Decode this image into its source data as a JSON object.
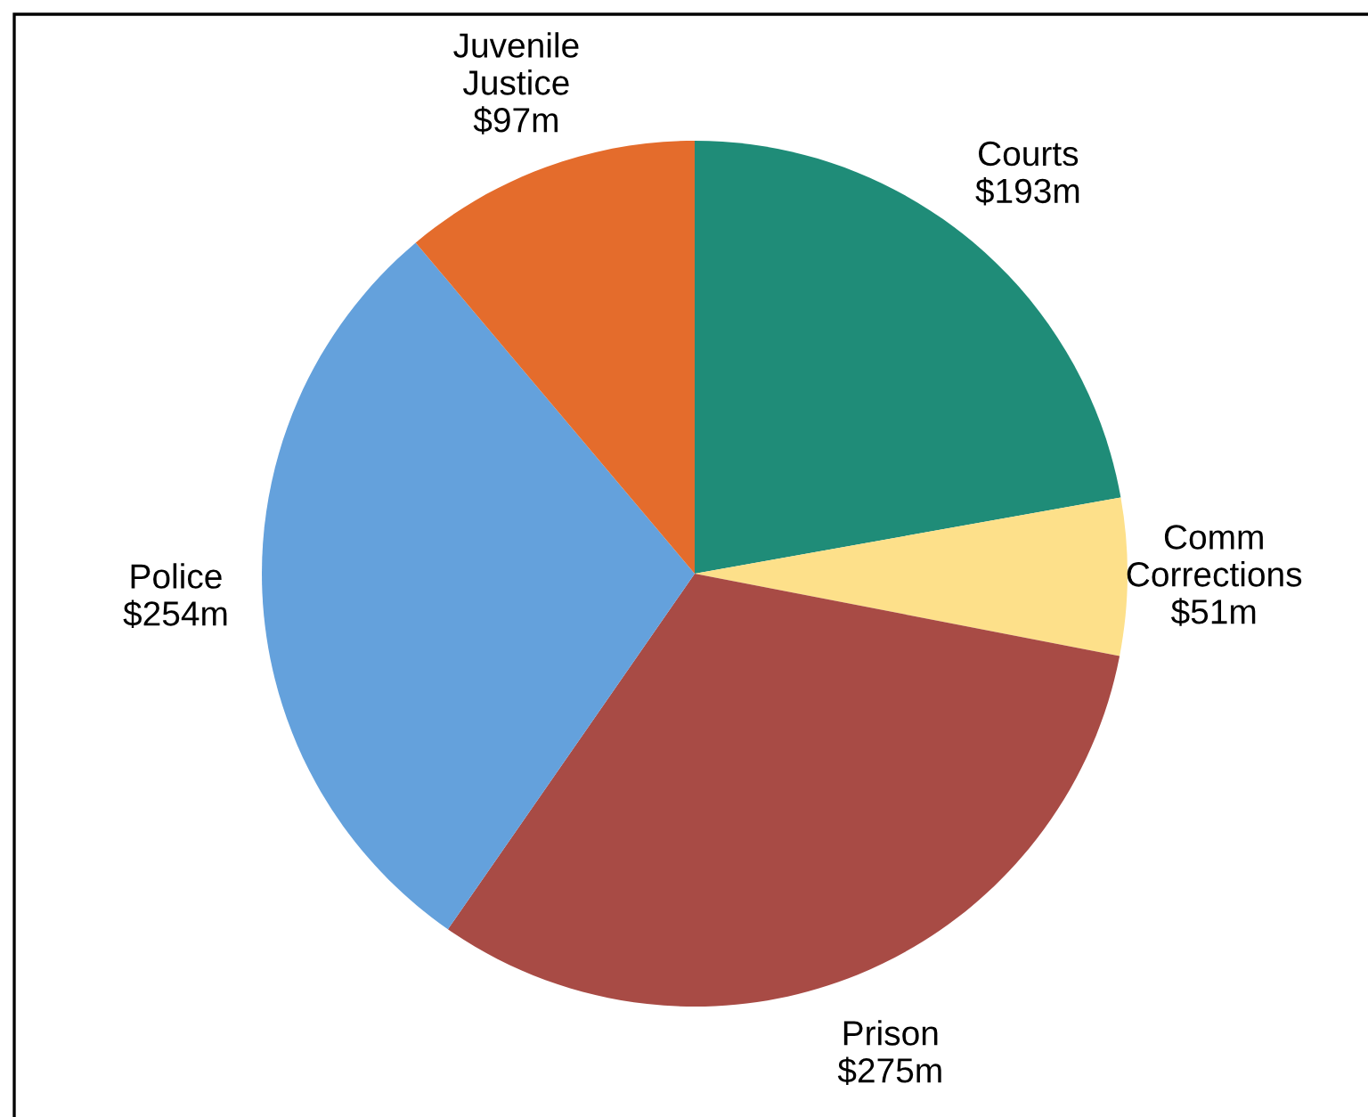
{
  "chart_data": {
    "type": "pie",
    "categories": [
      "Courts",
      "Comm\nCorrections",
      "Prison",
      "Police",
      "Juvenile\nJustice"
    ],
    "values": [
      193,
      51,
      275,
      254,
      97
    ],
    "value_labels": [
      "$193m",
      "$51m",
      "$275m",
      "$254m",
      "$97m"
    ],
    "colors": [
      "#1f8c78",
      "#fde08a",
      "#a84b45",
      "#64a1dc",
      "#e46c2c"
    ]
  }
}
